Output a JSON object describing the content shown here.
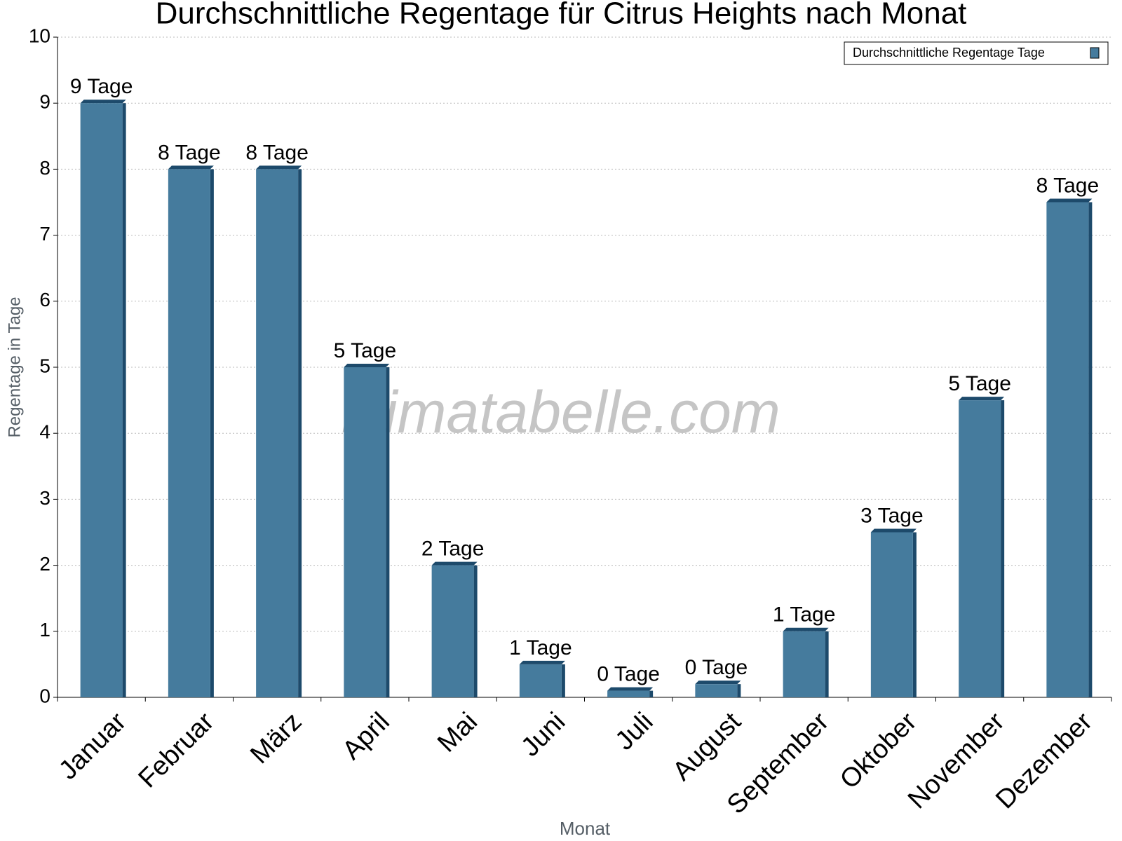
{
  "chart_data": {
    "type": "bar",
    "title": "Durchschnittliche Regentage für Citrus Heights nach Monat",
    "x_label": "Monat",
    "y_label": "Regentage in Tage",
    "watermark": "klimatabelle.com",
    "categories": [
      "Januar",
      "Februar",
      "März",
      "April",
      "Mai",
      "Juni",
      "Juli",
      "August",
      "September",
      "Oktober",
      "November",
      "Dezember"
    ],
    "series": [
      {
        "name": "Durchschnittliche Regentage Tage",
        "color": "#457b9d",
        "values": [
          9,
          8,
          8,
          5,
          2,
          0.5,
          0.1,
          0.2,
          1,
          2.5,
          4.5,
          7.5
        ],
        "value_labels": [
          "9 Tage",
          "8 Tage",
          "8 Tage",
          "5 Tage",
          "2 Tage",
          "1 Tage",
          "0 Tage",
          "0 Tage",
          "1 Tage",
          "3 Tage",
          "5 Tage",
          "8 Tage"
        ]
      }
    ],
    "ylim": [
      0,
      10
    ],
    "yticks": [
      0,
      1,
      2,
      3,
      4,
      5,
      6,
      7,
      8,
      9,
      10
    ],
    "grid": true,
    "legend": "top-right"
  }
}
